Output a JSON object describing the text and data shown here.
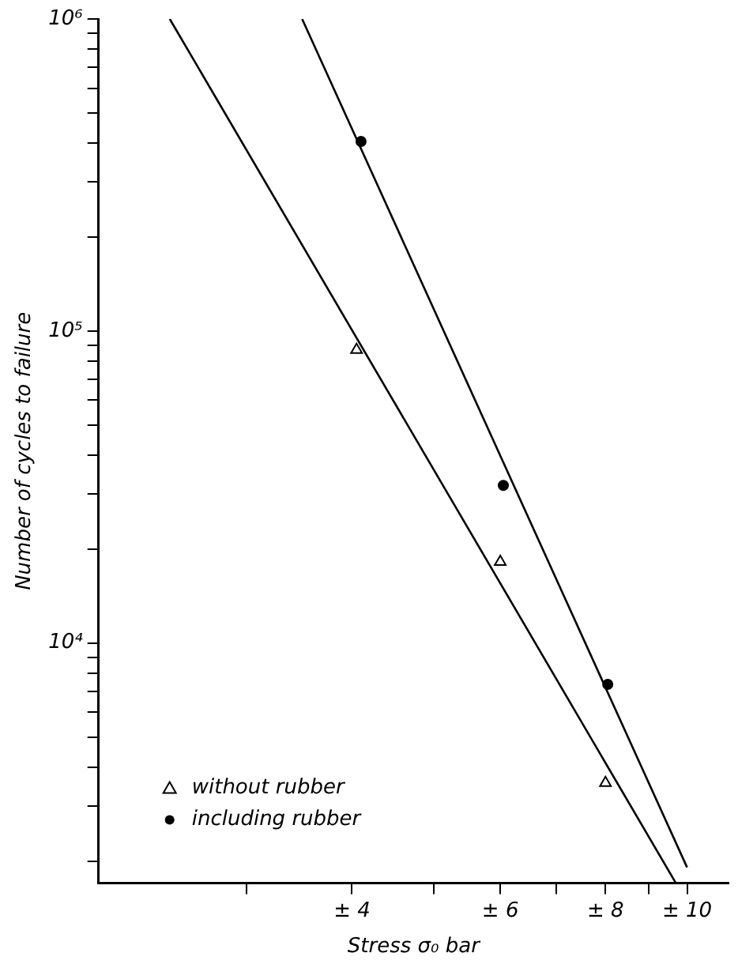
{
  "chart_data": {
    "type": "scatter",
    "xlabel": "Stress σ₀ bar",
    "ylabel": "Number of cycles to failure",
    "log": "xy",
    "grid": false,
    "legend": "bottom left",
    "xlim": [
      2,
      11.2
    ],
    "ylim": [
      1700,
      1000000
    ],
    "xticks": [
      {
        "value": 3,
        "label": null
      },
      {
        "value": 4,
        "label": "± 4"
      },
      {
        "value": 5,
        "label": null
      },
      {
        "value": 6,
        "label": "± 6"
      },
      {
        "value": 7,
        "label": null
      },
      {
        "value": 8,
        "label": "± 8"
      },
      {
        "value": 9,
        "label": null
      },
      {
        "value": 10,
        "label": "± 10"
      }
    ],
    "yticks": [
      {
        "value": 2000,
        "label": null
      },
      {
        "value": 3000,
        "label": null
      },
      {
        "value": 4000,
        "label": null
      },
      {
        "value": 5000,
        "label": null
      },
      {
        "value": 6000,
        "label": null
      },
      {
        "value": 7000,
        "label": null
      },
      {
        "value": 8000,
        "label": null
      },
      {
        "value": 9000,
        "label": null
      },
      {
        "value": 10000,
        "label": "10⁴"
      },
      {
        "value": 20000,
        "label": null
      },
      {
        "value": 30000,
        "label": null
      },
      {
        "value": 40000,
        "label": null
      },
      {
        "value": 50000,
        "label": null
      },
      {
        "value": 60000,
        "label": null
      },
      {
        "value": 70000,
        "label": null
      },
      {
        "value": 80000,
        "label": null
      },
      {
        "value": 90000,
        "label": null
      },
      {
        "value": 100000,
        "label": "10⁵"
      },
      {
        "value": 200000,
        "label": null
      },
      {
        "value": 300000,
        "label": null
      },
      {
        "value": 400000,
        "label": null
      },
      {
        "value": 500000,
        "label": null
      },
      {
        "value": 600000,
        "label": null
      },
      {
        "value": 700000,
        "label": null
      },
      {
        "value": 800000,
        "label": null
      },
      {
        "value": 900000,
        "label": null
      },
      {
        "value": 1000000,
        "label": "10⁶"
      }
    ],
    "series": [
      {
        "name": "without rubber",
        "type": "scatter",
        "marker": "triangle",
        "color": "#000000",
        "x": [
          4.05,
          6,
          8
        ],
        "values": [
          87000,
          18200,
          3560
        ]
      },
      {
        "name": "including rubber",
        "type": "scatter",
        "marker": "circle",
        "color": "#000000",
        "x": [
          4.1,
          6.05,
          8.05
        ],
        "values": [
          405000,
          32000,
          7370
        ]
      },
      {
        "type": "line",
        "marker": "none",
        "color": "#000000",
        "x": [
          2.43,
          9.7
        ],
        "values": [
          1000000,
          1700
        ]
      },
      {
        "type": "line",
        "marker": "none",
        "color": "#000000",
        "x": [
          3.49,
          10
        ],
        "values": [
          1000000,
          1910
        ]
      }
    ]
  }
}
